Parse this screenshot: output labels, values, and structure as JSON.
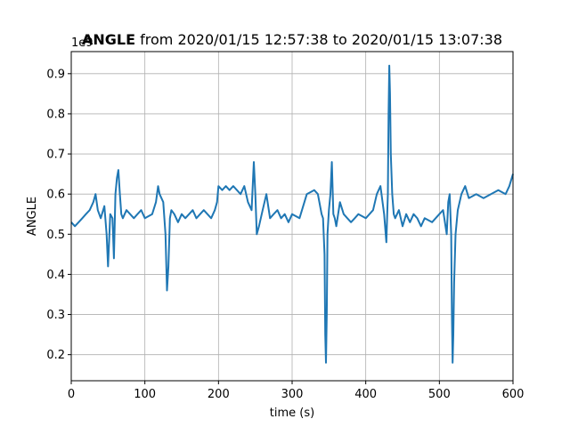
{
  "chart_data": {
    "type": "line",
    "title_bold": "ANGLE",
    "title_rest": " from 2020/01/15 12:57:38 to 2020/01/15 13:07:38",
    "xlabel": "time (s)",
    "ylabel": "ANGLE",
    "y_offset_label": "1e9",
    "xlim": [
      0,
      600
    ],
    "ylim": [
      0.135,
      0.955
    ],
    "xticks": [
      0,
      100,
      200,
      300,
      400,
      500,
      600
    ],
    "xtick_labels": [
      "0",
      "100",
      "200",
      "300",
      "400",
      "500",
      "600"
    ],
    "yticks": [
      0.2,
      0.3,
      0.4,
      0.5,
      0.6,
      0.7,
      0.8,
      0.9
    ],
    "ytick_labels": [
      "0.2",
      "0.3",
      "0.4",
      "0.5",
      "0.6",
      "0.7",
      "0.8",
      "0.9"
    ],
    "grid": true,
    "series_color": "#1f77b4",
    "series": [
      {
        "x": [
          0,
          5,
          10,
          15,
          20,
          25,
          30,
          33,
          36,
          40,
          45,
          48,
          50,
          53,
          56,
          58,
          60,
          62,
          64,
          66,
          68,
          70,
          75,
          80,
          85,
          90,
          95,
          100,
          110,
          115,
          118,
          120,
          125,
          128,
          130,
          132,
          134,
          136,
          140,
          145,
          150,
          155,
          160,
          165,
          170,
          175,
          180,
          185,
          190,
          195,
          198,
          200,
          205,
          210,
          215,
          220,
          225,
          230,
          235,
          240,
          245,
          248,
          250,
          252,
          255,
          260,
          265,
          270,
          275,
          280,
          285,
          290,
          295,
          300,
          310,
          320,
          330,
          335,
          340,
          342,
          344,
          345,
          346,
          347,
          348,
          350,
          352,
          354,
          356,
          358,
          360,
          365,
          370,
          375,
          380,
          385,
          390,
          400,
          410,
          415,
          420,
          425,
          428,
          430,
          431,
          432,
          433,
          434,
          436,
          438,
          440,
          445,
          450,
          455,
          460,
          465,
          470,
          475,
          480,
          490,
          500,
          505,
          510,
          512,
          514,
          516,
          517,
          518,
          519,
          520,
          522,
          525,
          530,
          535,
          540,
          550,
          560,
          570,
          580,
          590,
          595,
          600
        ],
        "y": [
          0.53,
          0.52,
          0.53,
          0.54,
          0.55,
          0.56,
          0.58,
          0.6,
          0.56,
          0.54,
          0.57,
          0.5,
          0.42,
          0.55,
          0.54,
          0.44,
          0.6,
          0.64,
          0.66,
          0.6,
          0.55,
          0.54,
          0.56,
          0.55,
          0.54,
          0.55,
          0.56,
          0.54,
          0.55,
          0.58,
          0.62,
          0.6,
          0.58,
          0.5,
          0.36,
          0.42,
          0.54,
          0.56,
          0.55,
          0.53,
          0.55,
          0.54,
          0.55,
          0.56,
          0.54,
          0.55,
          0.56,
          0.55,
          0.54,
          0.56,
          0.58,
          0.62,
          0.61,
          0.62,
          0.61,
          0.62,
          0.61,
          0.6,
          0.62,
          0.58,
          0.56,
          0.68,
          0.6,
          0.5,
          0.52,
          0.56,
          0.6,
          0.54,
          0.55,
          0.56,
          0.54,
          0.55,
          0.53,
          0.55,
          0.54,
          0.6,
          0.61,
          0.6,
          0.55,
          0.54,
          0.45,
          0.25,
          0.18,
          0.3,
          0.5,
          0.56,
          0.6,
          0.68,
          0.55,
          0.54,
          0.52,
          0.58,
          0.55,
          0.54,
          0.53,
          0.54,
          0.55,
          0.54,
          0.56,
          0.6,
          0.62,
          0.55,
          0.48,
          0.6,
          0.8,
          0.92,
          0.85,
          0.7,
          0.6,
          0.55,
          0.54,
          0.56,
          0.52,
          0.55,
          0.53,
          0.55,
          0.54,
          0.52,
          0.54,
          0.53,
          0.55,
          0.56,
          0.5,
          0.58,
          0.6,
          0.5,
          0.3,
          0.18,
          0.25,
          0.38,
          0.5,
          0.56,
          0.6,
          0.62,
          0.59,
          0.6,
          0.59,
          0.6,
          0.61,
          0.6,
          0.62,
          0.65
        ]
      }
    ]
  }
}
